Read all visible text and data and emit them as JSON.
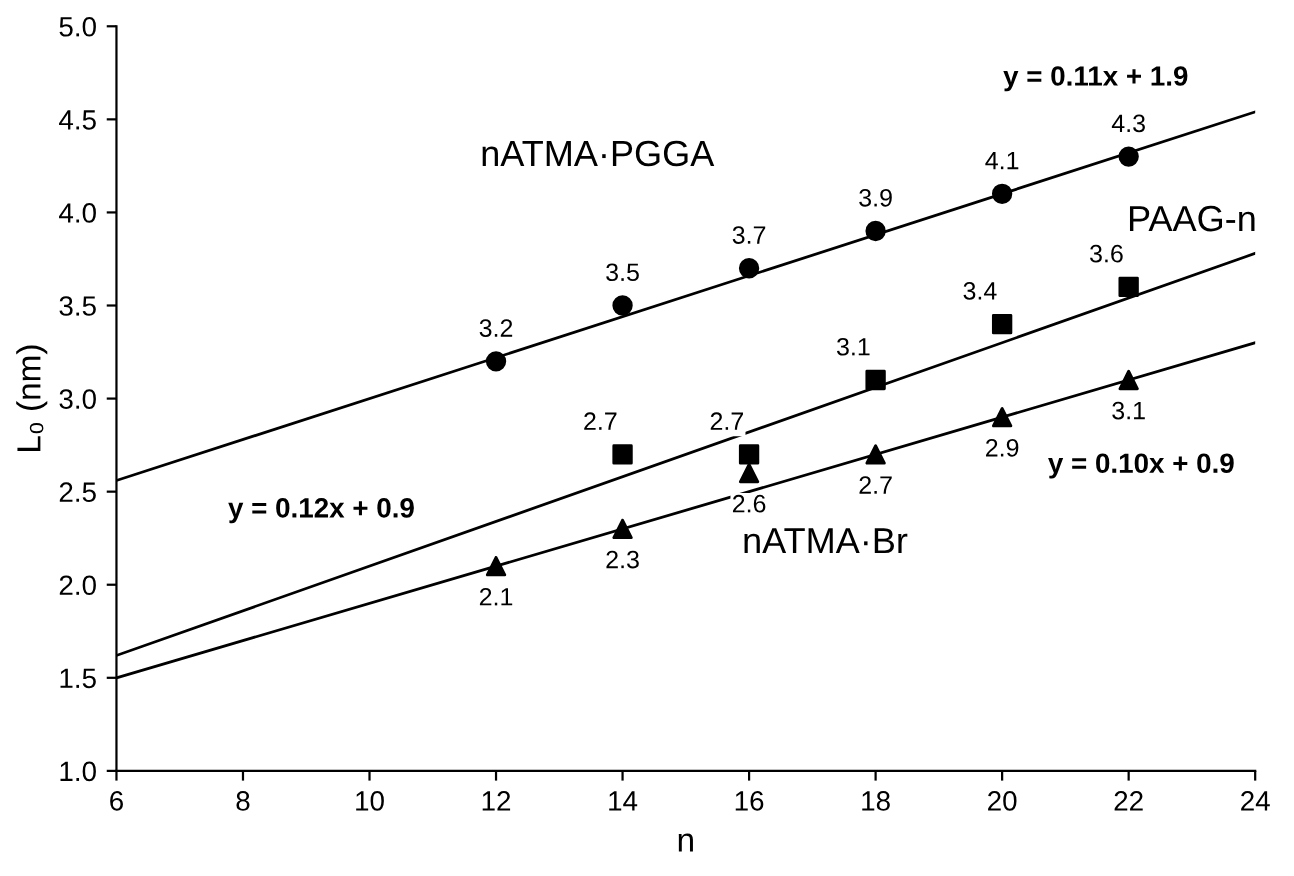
{
  "chart_data": {
    "type": "scatter",
    "xlabel": "n",
    "ylabel": "L₀ (nm)",
    "xlim": [
      6,
      24
    ],
    "xticks": [
      6,
      8,
      10,
      12,
      14,
      16,
      18,
      20,
      22,
      24
    ],
    "ylim": [
      1,
      5
    ],
    "yticks": [
      {
        "value": 1,
        "label": "1.0"
      },
      {
        "value": 1.5,
        "label": "1.5"
      },
      {
        "value": 2,
        "label": "2.0"
      },
      {
        "value": 2.5,
        "label": "2.5"
      },
      {
        "value": 3,
        "label": "3.0"
      },
      {
        "value": 3.5,
        "label": "3.5"
      },
      {
        "value": 4,
        "label": "4.0"
      },
      {
        "value": 4.5,
        "label": "4.5"
      },
      {
        "value": 5,
        "label": "5.0"
      }
    ],
    "grid": false,
    "legend": false,
    "series": [
      {
        "name": "nATMA·PGGA",
        "color": "#000000",
        "marker": "circle",
        "x": [
          12,
          14,
          16,
          18,
          20,
          22
        ],
        "values": [
          3.2,
          3.5,
          3.7,
          3.9,
          4.1,
          4.3
        ],
        "value_labels": [
          "3.2",
          "3.5",
          "3.7",
          "3.9",
          "4.1",
          "4.3"
        ]
      },
      {
        "name": "PAAG-n",
        "color": "#000000",
        "marker": "square",
        "x": [
          14,
          16,
          18,
          20,
          22
        ],
        "values": [
          2.7,
          2.7,
          3.1,
          3.4,
          3.6
        ],
        "value_labels": [
          "2.7",
          "2.7",
          "3.1",
          "3.4",
          "3.6"
        ]
      },
      {
        "name": "nATMA·Br",
        "color": "#000000",
        "marker": "triangle",
        "x": [
          12,
          14,
          16,
          18,
          20,
          22
        ],
        "values": [
          2.1,
          2.3,
          2.6,
          2.7,
          2.9,
          3.1
        ],
        "value_labels": [
          "2.1",
          "2.3",
          "2.6",
          "2.7",
          "2.9",
          "3.1"
        ]
      },
      {
        "type": "line",
        "color": "#000000",
        "marker": "none",
        "x": [
          6,
          24
        ],
        "values": [
          2.56,
          4.54
        ]
      },
      {
        "type": "line",
        "color": "#000000",
        "marker": "none",
        "x": [
          6,
          24
        ],
        "values": [
          1.62,
          3.78
        ]
      },
      {
        "type": "line",
        "color": "#000000",
        "marker": "none",
        "x": [
          6,
          24
        ],
        "values": [
          1.5,
          3.3
        ]
      }
    ],
    "annotations": [
      "y = 0.11x + 1.9",
      "y = 0.12x + 0.9",
      "y = 0.10x + 0.9"
    ]
  }
}
